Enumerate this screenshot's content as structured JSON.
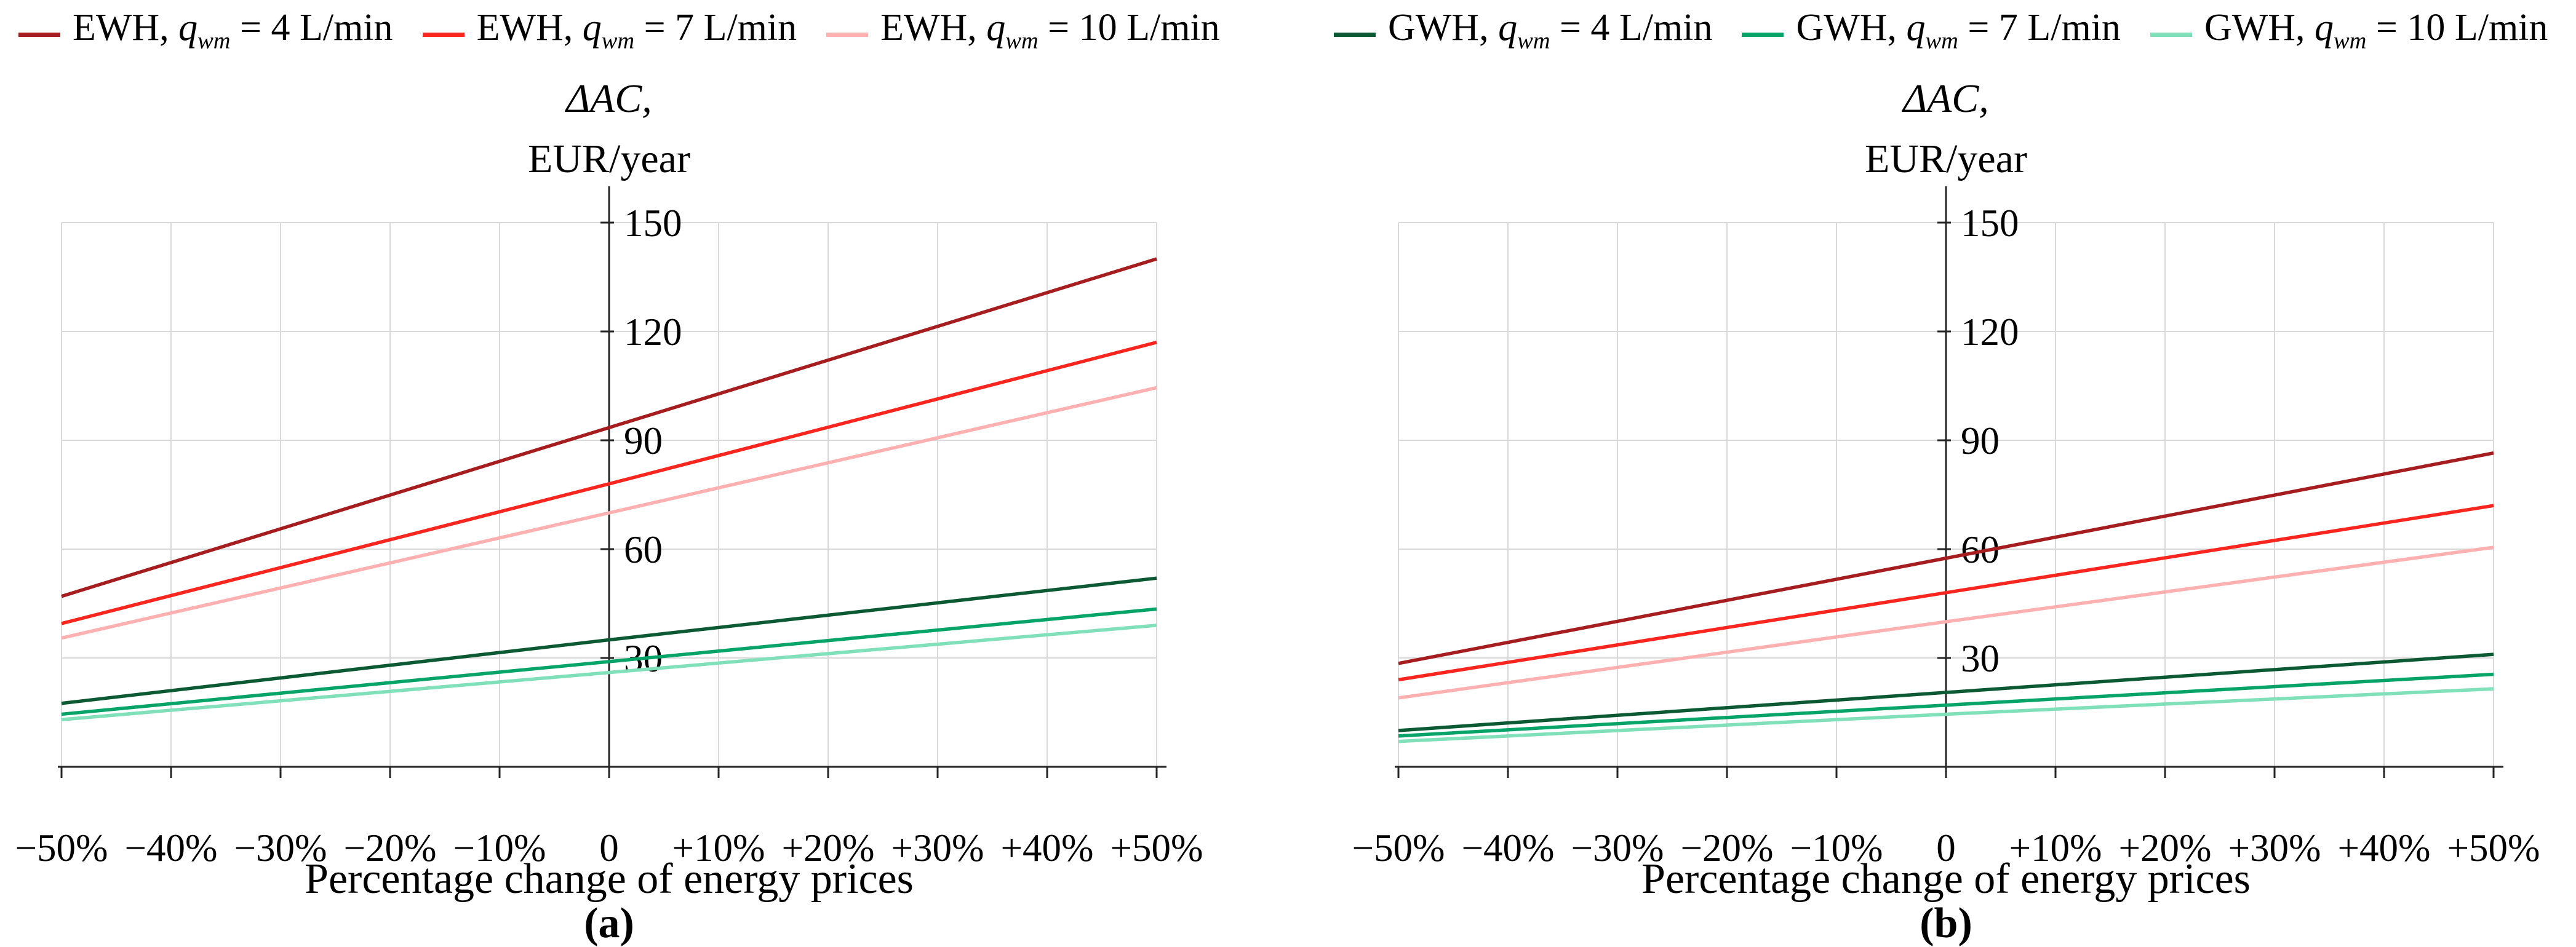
{
  "figure": {
    "panels": [
      {
        "label": "(a)",
        "y_title_1": "ΔAC,",
        "y_title_2": "EUR/year",
        "x_label": "Percentage change of energy prices"
      },
      {
        "label": "(b)",
        "y_title_1": "ΔAC,",
        "y_title_2": "EUR/year",
        "x_label": "Percentage change of energy prices"
      }
    ],
    "legend": {
      "ewh": [
        {
          "pre": "EWH, ",
          "sym": "q",
          "sub": "wm",
          "post": " = 4 L/min",
          "color": "#a61d1f"
        },
        {
          "pre": "EWH, ",
          "sym": "q",
          "sub": "wm",
          "post": " = 7 L/min",
          "color": "#f9261f"
        },
        {
          "pre": "EWH, ",
          "sym": "q",
          "sub": "wm",
          "post": " = 10 L/min",
          "color": "#ffb1b1"
        }
      ],
      "gwh": [
        {
          "pre": "GWH, ",
          "sym": "q",
          "sub": "wm",
          "post": " = 4 L/min",
          "color": "#0c5a33"
        },
        {
          "pre": "GWH, ",
          "sym": "q",
          "sub": "wm",
          "post": " = 7 L/min",
          "color": "#06a468"
        },
        {
          "pre": "GWH, ",
          "sym": "q",
          "sub": "wm",
          "post": " = 10 L/min",
          "color": "#7fe0ba"
        }
      ]
    },
    "colors": {
      "axis": "#262626",
      "gridline": "#d9d9d9",
      "ewh_4": "#a61d1f",
      "ewh_7": "#f9261f",
      "ewh_10": "#ffb1b1",
      "gwh_4": "#0c5a33",
      "gwh_7": "#06a468",
      "gwh_10": "#7fe0ba"
    }
  },
  "chart_data": [
    {
      "type": "line",
      "panel_label": "(a)",
      "title": "",
      "xlabel": "Percentage change of energy prices",
      "ylabel": "ΔAC, EUR/year",
      "x": [
        -50,
        0,
        50
      ],
      "x_ticks": [
        -50,
        -40,
        -30,
        -20,
        -10,
        0,
        10,
        20,
        30,
        40,
        50
      ],
      "x_tick_labels": [
        "−50%",
        "−40%",
        "−30%",
        "−20%",
        "−10%",
        "0",
        "+10%",
        "+20%",
        "+30%",
        "+40%",
        "+50%"
      ],
      "y_ticks": [
        30,
        60,
        90,
        120,
        150
      ],
      "ylim": [
        0,
        160
      ],
      "grid": true,
      "legend_position": "top",
      "series": [
        {
          "name": "EWH, qwm = 4 L/min",
          "color": "#a61d1f",
          "values": [
            47,
            93.5,
            140
          ]
        },
        {
          "name": "EWH, qwm = 7 L/min",
          "color": "#f9261f",
          "values": [
            39.5,
            78,
            117
          ]
        },
        {
          "name": "EWH, qwm = 10 L/min",
          "color": "#ffb1b1",
          "values": [
            35.5,
            70,
            104.5
          ]
        },
        {
          "name": "GWH, qwm = 4 L/min",
          "color": "#0c5a33",
          "values": [
            17.5,
            35,
            52
          ]
        },
        {
          "name": "GWH, qwm = 7 L/min",
          "color": "#06a468",
          "values": [
            14.5,
            29,
            43.5
          ]
        },
        {
          "name": "GWH, qwm = 10 L/min",
          "color": "#7fe0ba",
          "values": [
            13,
            26,
            39
          ]
        }
      ]
    },
    {
      "type": "line",
      "panel_label": "(b)",
      "title": "",
      "xlabel": "Percentage change of energy prices",
      "ylabel": "ΔAC, EUR/year",
      "x": [
        -50,
        0,
        50
      ],
      "x_ticks": [
        -50,
        -40,
        -30,
        -20,
        -10,
        0,
        10,
        20,
        30,
        40,
        50
      ],
      "x_tick_labels": [
        "−50%",
        "−40%",
        "−30%",
        "−20%",
        "−10%",
        "0",
        "+10%",
        "+20%",
        "+30%",
        "+40%",
        "+50%"
      ],
      "y_ticks": [
        30,
        60,
        90,
        120,
        150
      ],
      "ylim": [
        0,
        160
      ],
      "grid": true,
      "legend_position": "top",
      "series": [
        {
          "name": "EWH, qwm = 4 L/min",
          "color": "#a61d1f",
          "values": [
            28.5,
            57.5,
            86.5
          ]
        },
        {
          "name": "EWH, qwm = 7 L/min",
          "color": "#f9261f",
          "values": [
            24,
            48,
            72
          ]
        },
        {
          "name": "EWH, qwm = 10 L/min",
          "color": "#ffb1b1",
          "values": [
            19,
            40,
            60.5
          ]
        },
        {
          "name": "GWH, qwm = 4 L/min",
          "color": "#0c5a33",
          "values": [
            10,
            20.5,
            31
          ]
        },
        {
          "name": "GWH, qwm = 7 L/min",
          "color": "#06a468",
          "values": [
            8.5,
            17,
            25.5
          ]
        },
        {
          "name": "GWH, qwm = 10 L/min",
          "color": "#7fe0ba",
          "values": [
            7,
            14.5,
            21.5
          ]
        }
      ]
    }
  ]
}
